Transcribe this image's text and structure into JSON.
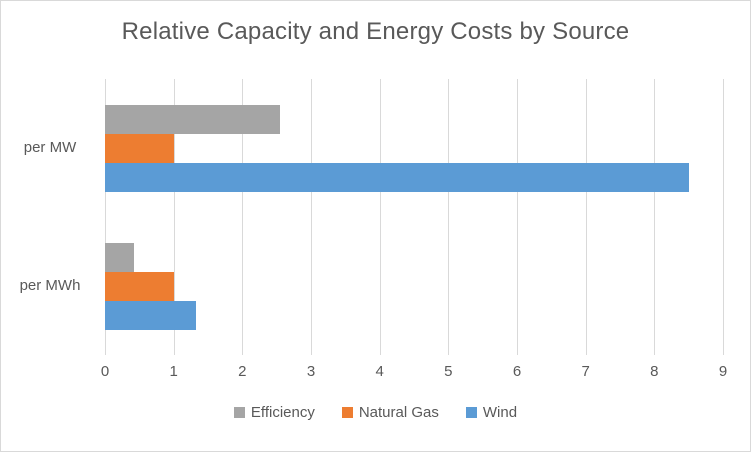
{
  "chart_data": {
    "type": "bar",
    "orientation": "horizontal",
    "title": "Relative Capacity and Energy Costs by Source",
    "categories": [
      "per MW",
      "per MWh"
    ],
    "series": [
      {
        "name": "Efficiency",
        "color": "#A5A5A5",
        "values": [
          2.55,
          0.42
        ]
      },
      {
        "name": "Natural Gas",
        "color": "#ED7D31",
        "values": [
          1,
          1
        ]
      },
      {
        "name": "Wind",
        "color": "#5B9BD5",
        "values": [
          8.5,
          1.33
        ]
      }
    ],
    "x_ticks": [
      "0",
      "1",
      "2",
      "3",
      "4",
      "5",
      "6",
      "7",
      "8",
      "9"
    ],
    "xlim": [
      0,
      9
    ],
    "grid": true,
    "legend_position": "bottom",
    "colors": {
      "text": "#595959",
      "gridline": "#D9D9D9",
      "border": "#D9D9D9",
      "background": "#FFFFFF"
    }
  }
}
